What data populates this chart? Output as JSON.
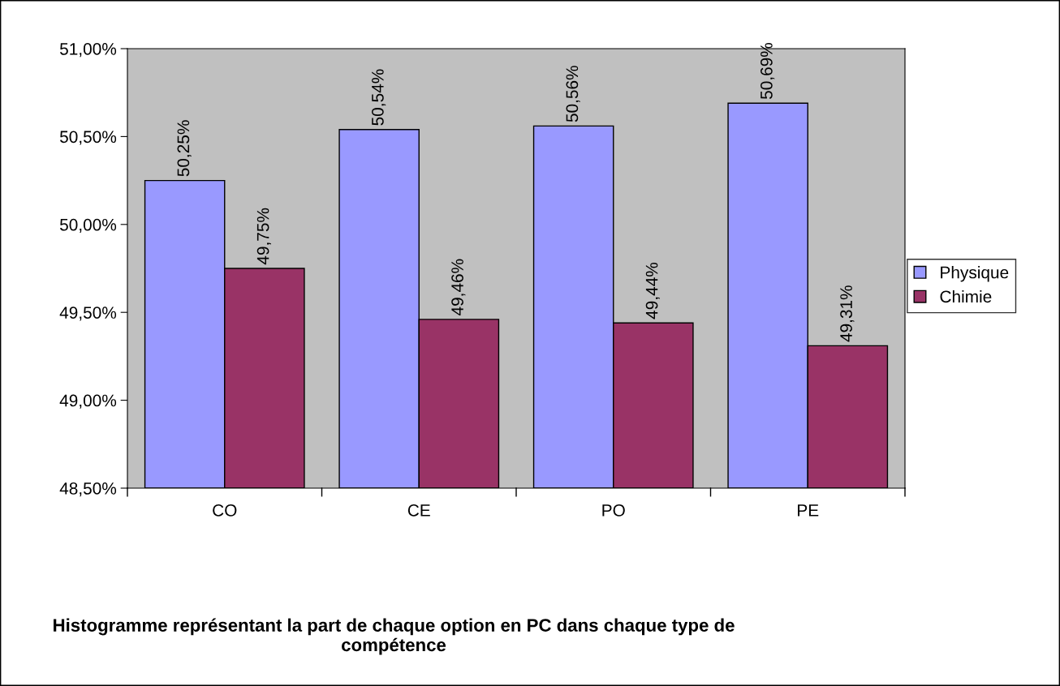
{
  "chart_data": {
    "type": "bar",
    "title": "Histogramme représentant la part de chaque option en PC dans chaque type de compétence",
    "categories": [
      "CO",
      "CE",
      "PO",
      "PE"
    ],
    "series": [
      {
        "name": "Physique",
        "color": "#9999ff",
        "values": [
          50.25,
          50.54,
          50.56,
          50.69
        ],
        "value_labels": [
          "50,25%",
          "50,54%",
          "50,56%",
          "50,69%"
        ]
      },
      {
        "name": "Chimie",
        "color": "#993366",
        "values": [
          49.75,
          49.46,
          49.44,
          49.31
        ],
        "value_labels": [
          "49,75%",
          "49,46%",
          "49,44%",
          "49,31%"
        ]
      }
    ],
    "ylim": [
      48.5,
      51.0
    ],
    "yticks": [
      {
        "value": 48.5,
        "label": "48,50%"
      },
      {
        "value": 49.0,
        "label": "49,00%"
      },
      {
        "value": 49.5,
        "label": "49,50%"
      },
      {
        "value": 50.0,
        "label": "50,00%"
      },
      {
        "value": 50.5,
        "label": "50,50%"
      },
      {
        "value": 51.0,
        "label": "51,00%"
      }
    ],
    "grid": false,
    "legend": "right"
  }
}
